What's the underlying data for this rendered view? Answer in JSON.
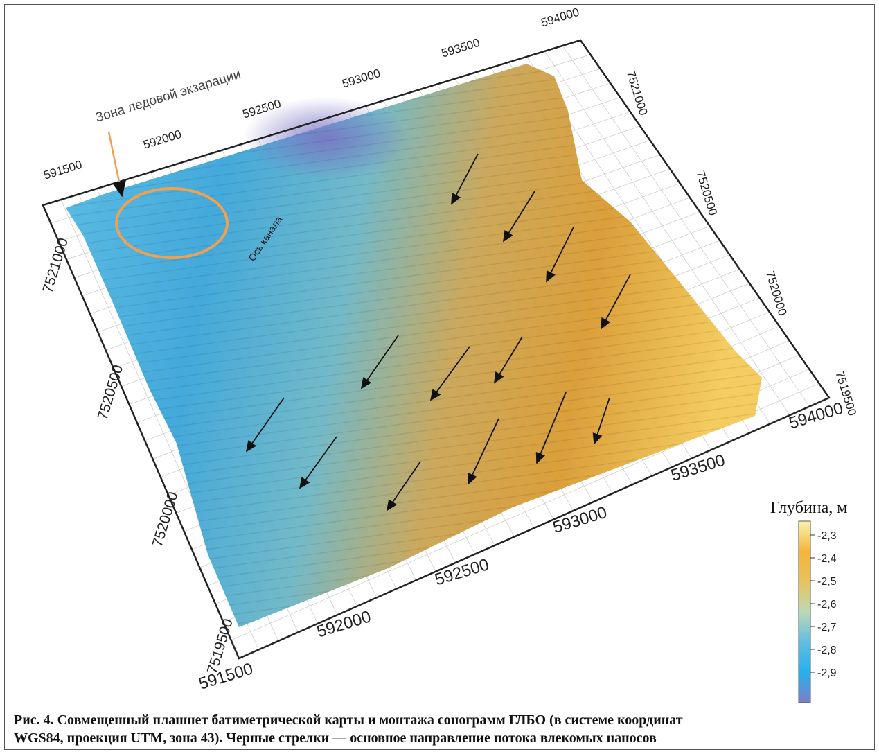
{
  "annotations": {
    "ice_zone": "Зона ледовой экзарации",
    "channel_axis": "Ось канала"
  },
  "axes": {
    "top_x": [
      "591500",
      "592000",
      "592500",
      "593000",
      "593500",
      "594000"
    ],
    "bottom_x": [
      "591500",
      "592000",
      "592500",
      "593000",
      "593500",
      "594000"
    ],
    "left_y": [
      "7521000",
      "7520500",
      "7520000",
      "7519500"
    ],
    "right_y": [
      "7521000",
      "7520500",
      "7520000",
      "7519500"
    ]
  },
  "legend": {
    "title": "Глубина, м",
    "ticks": [
      "-2,3",
      "-2,4",
      "-2,5",
      "-2,6",
      "-2,7",
      "-2,8",
      "-2,9"
    ],
    "colors": [
      "#f7f0a8",
      "#f3b53c",
      "#e9b951",
      "#bcd9b8",
      "#63bde0",
      "#2cb2ea",
      "#7b7fc6"
    ]
  },
  "caption": {
    "line1": "Рис. 4. Совмещенный планшет батиметрической карты и монтажа сонограмм ГЛБО (в системе координат",
    "line2": "WGS84, проекция UTM, зона 43). Черные стрелки — основное направление потока влекомых наносов"
  },
  "colors": {
    "annotation_orange": "#f0a050",
    "arrow": "#111111"
  }
}
